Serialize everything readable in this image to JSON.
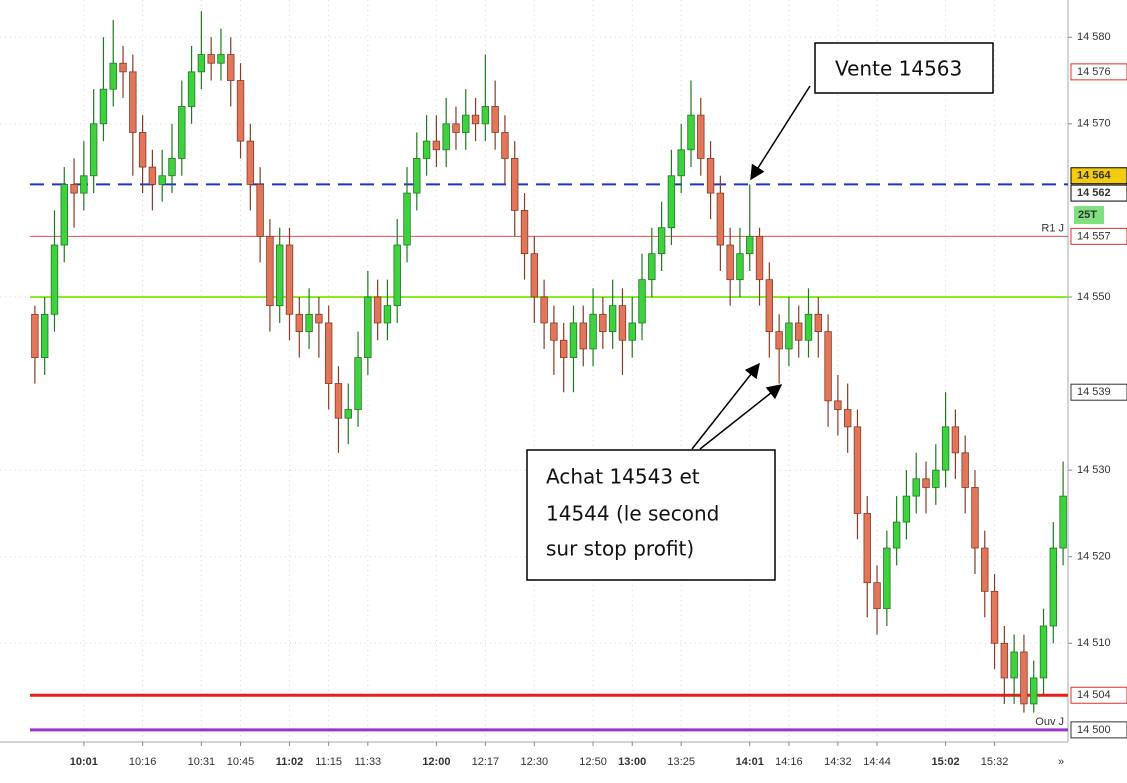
{
  "chart_data": {
    "type": "candlestick",
    "categories": [
      null,
      null,
      null,
      null,
      null,
      "10:01",
      null,
      null,
      null,
      null,
      null,
      "10:16",
      null,
      null,
      null,
      null,
      null,
      "10:31",
      null,
      null,
      null,
      "10:45",
      null,
      null,
      null,
      null,
      "11:02",
      null,
      null,
      null,
      "11:15",
      null,
      null,
      null,
      "11:33",
      null,
      null,
      null,
      null,
      null,
      null,
      "12:00",
      null,
      null,
      null,
      null,
      "12:17",
      null,
      null,
      null,
      null,
      "12:30",
      null,
      null,
      null,
      null,
      null,
      "12:50",
      null,
      null,
      null,
      "13:00",
      null,
      null,
      null,
      null,
      "13:25",
      null,
      null,
      null,
      null,
      null,
      null,
      "14:01",
      null,
      null,
      null,
      "14:16",
      null,
      null,
      null,
      null,
      "14:32",
      null,
      null,
      null,
      "14:44",
      null,
      null,
      null,
      null,
      null,
      null,
      "15:02",
      null,
      null,
      null,
      null,
      "15:32",
      null,
      null,
      null,
      null,
      null,
      null,
      null
    ],
    "open": [
      14548,
      14543,
      14548,
      14556,
      14563,
      14562,
      14564,
      14570,
      14574,
      14577,
      14576,
      14569,
      14565,
      14563,
      14564,
      14566,
      14572,
      14576,
      14578,
      14577,
      14578,
      14575,
      14568,
      14563,
      14557,
      14549,
      14556,
      14548,
      14546,
      14548,
      14547,
      14540,
      14536,
      14537,
      14543,
      14550,
      14547,
      14549,
      14556,
      14562,
      14566,
      14568,
      14567,
      14570,
      14569,
      14571,
      14570,
      14572,
      14569,
      14566,
      14560,
      14555,
      14550,
      14547,
      14545,
      14543,
      14547,
      14544,
      14548,
      14546,
      14549,
      14545,
      14547,
      14552,
      14555,
      14558,
      14564,
      14567,
      14571,
      14566,
      14562,
      14556,
      14552,
      14555,
      14557,
      14552,
      14546,
      14544,
      14547,
      14545,
      14548,
      14546,
      14538,
      14537,
      14535,
      14525,
      14517,
      14514,
      14521,
      14524,
      14527,
      14529,
      14528,
      14530,
      14535,
      14532,
      14528,
      14521,
      14516,
      14510,
      14506,
      14509,
      14503,
      14506,
      14512,
      14521
    ],
    "high": [
      14549,
      14550,
      14560,
      14565,
      14566,
      14568,
      14574,
      14580,
      14582,
      14579,
      14578,
      14571,
      14567,
      14567,
      14570,
      14575,
      14579,
      14583,
      14580,
      14581,
      14580,
      14577,
      14570,
      14565,
      14559,
      14558,
      14558,
      14550,
      14551,
      14550,
      14549,
      14542,
      14540,
      14546,
      14553,
      14552,
      14552,
      14559,
      14565,
      14569,
      14571,
      14571,
      14573,
      14572,
      14574,
      14573,
      14578,
      14575,
      14571,
      14568,
      14562,
      14557,
      14552,
      14549,
      14547,
      14549,
      14549,
      14551,
      14550,
      14552,
      14551,
      14550,
      14555,
      14558,
      14561,
      14567,
      14570,
      14575,
      14573,
      14568,
      14564,
      14558,
      14558,
      14563,
      14558,
      14554,
      14548,
      14550,
      14549,
      14551,
      14550,
      14548,
      14541,
      14540,
      14537,
      14527,
      14519,
      14523,
      14527,
      14530,
      14532,
      14531,
      14533,
      14539,
      14537,
      14534,
      14530,
      14523,
      14518,
      14512,
      14511,
      14511,
      14508,
      14514,
      14524,
      14531
    ],
    "low": [
      14540,
      14541,
      14546,
      14554,
      14558,
      14560,
      14562,
      14568,
      14572,
      14573,
      14564,
      14562,
      14560,
      14561,
      14562,
      14564,
      14570,
      14574,
      14575,
      14575,
      14572,
      14566,
      14560,
      14554,
      14546,
      14547,
      14545,
      14543,
      14544,
      14543,
      14537,
      14532,
      14533,
      14535,
      14541,
      14545,
      14545,
      14547,
      14554,
      14560,
      14564,
      14565,
      14565,
      14567,
      14567,
      14568,
      14568,
      14567,
      14563,
      14557,
      14552,
      14547,
      14544,
      14541,
      14539,
      14539,
      14542,
      14542,
      14544,
      14544,
      14541,
      14543,
      14545,
      14550,
      14553,
      14556,
      14562,
      14565,
      14564,
      14559,
      14553,
      14549,
      14550,
      14553,
      14549,
      14543,
      14540,
      14542,
      14543,
      14543,
      14543,
      14535,
      14534,
      14532,
      14522,
      14513,
      14511,
      14512,
      14519,
      14522,
      14525,
      14525,
      14526,
      14528,
      14529,
      14525,
      14518,
      14513,
      14507,
      14503,
      14503,
      14502,
      14502,
      14504,
      14510,
      14519
    ],
    "close": [
      14543,
      14548,
      14556,
      14563,
      14562,
      14564,
      14570,
      14574,
      14577,
      14576,
      14569,
      14565,
      14563,
      14564,
      14566,
      14572,
      14576,
      14578,
      14577,
      14578,
      14575,
      14568,
      14563,
      14557,
      14549,
      14556,
      14548,
      14546,
      14548,
      14547,
      14540,
      14536,
      14537,
      14543,
      14550,
      14547,
      14549,
      14556,
      14562,
      14566,
      14568,
      14567,
      14570,
      14569,
      14571,
      14570,
      14572,
      14569,
      14566,
      14560,
      14555,
      14550,
      14547,
      14545,
      14543,
      14547,
      14544,
      14548,
      14546,
      14549,
      14545,
      14547,
      14552,
      14555,
      14558,
      14564,
      14567,
      14571,
      14566,
      14562,
      14556,
      14552,
      14555,
      14557,
      14552,
      14546,
      14544,
      14547,
      14545,
      14548,
      14546,
      14538,
      14537,
      14535,
      14525,
      14517,
      14514,
      14521,
      14524,
      14527,
      14529,
      14528,
      14530,
      14535,
      14532,
      14528,
      14521,
      14516,
      14510,
      14506,
      14509,
      14503,
      14506,
      14512,
      14521,
      14527
    ],
    "up_color": "#3fd13f",
    "down_color": "#e0765a",
    "ylim": [
      14498.6,
      14584.3
    ],
    "yticks": [
      {
        "value": 14580,
        "label": "14 580"
      },
      {
        "value": 14570,
        "label": "14 570"
      },
      {
        "value": 14550,
        "label": "14 550"
      },
      {
        "value": 14530,
        "label": "14 530"
      },
      {
        "value": 14520,
        "label": "14 520"
      },
      {
        "value": 14510,
        "label": "14 510"
      }
    ],
    "grid": true,
    "levels": [
      {
        "value": 14563,
        "color": "#2233cc",
        "dash": true,
        "width": 2
      },
      {
        "value": 14557,
        "color": "#e05050",
        "width": 1,
        "name": "R1 J"
      },
      {
        "value": 14550,
        "color": "#88ee22",
        "width": 2
      },
      {
        "value": 14504,
        "color": "#ee1c1c",
        "width": 3
      },
      {
        "value": 14500,
        "color": "#9933cc",
        "width": 3,
        "name": "Ouv J"
      }
    ],
    "tags": [
      {
        "value": 14576,
        "label": "14 576",
        "color": "#e03030",
        "fill": "#fff"
      },
      {
        "value": 14564,
        "label": "14 564",
        "color": "#000",
        "fill": "#f2cc10"
      },
      {
        "value": 14562,
        "label": "14 562",
        "color": "#000",
        "fill": "#fff"
      },
      {
        "value": 14557,
        "label": "14 557",
        "color": "#e03030",
        "fill": "#fff"
      },
      {
        "value": 14539,
        "label": "14 539",
        "color": "#333",
        "fill": "#fff"
      },
      {
        "value": 14504,
        "label": "14 504",
        "color": "#e03030",
        "fill": "#fff"
      },
      {
        "value": 14500,
        "label": "14 500",
        "color": "#333",
        "fill": "#fff"
      }
    ],
    "bar_type": "25T",
    "annotations": [
      {
        "lines": [
          "Vente 14563"
        ]
      },
      {
        "lines": [
          "Achat 14543  et",
          "14544  (le second",
          "sur stop profit)"
        ]
      }
    ],
    "nav": "»"
  }
}
